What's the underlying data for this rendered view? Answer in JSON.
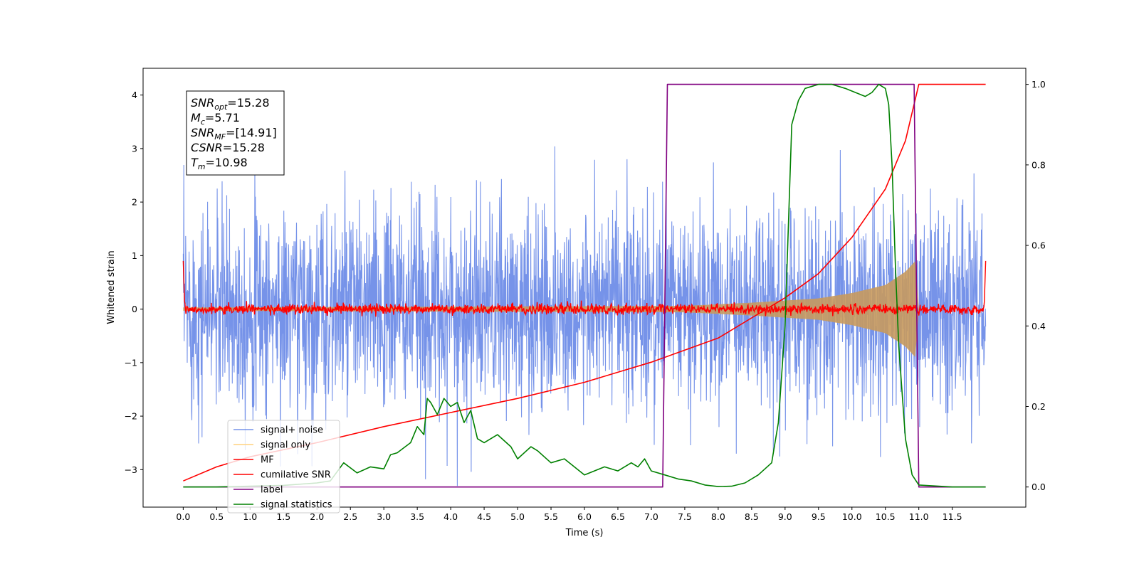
{
  "chart_data": {
    "type": "line",
    "xlabel": "Time (s)",
    "ylabel_left": "Whitened strain",
    "ylabel_right": "",
    "xlim": [
      -0.6,
      12.6
    ],
    "ylim_left": [
      -3.7,
      4.5
    ],
    "ylim_right": [
      -0.05,
      1.04
    ],
    "x_ticks": [
      "0.0",
      "0.5",
      "1.0",
      "1.5",
      "2.0",
      "2.5",
      "3.0",
      "3.5",
      "4.0",
      "4.5",
      "5.0",
      "5.5",
      "6.0",
      "6.5",
      "7.0",
      "7.5",
      "8.0",
      "8.5",
      "9.0",
      "9.5",
      "10.0",
      "10.5",
      "11.0",
      "11.5"
    ],
    "y_ticks_left": [
      "−3",
      "−2",
      "−1",
      "0",
      "1",
      "2",
      "3",
      "4"
    ],
    "y_ticks_right": [
      "0.0",
      "0.2",
      "0.4",
      "0.6",
      "0.8",
      "1.0"
    ],
    "grid": false,
    "legend_position": "lower-left",
    "annotation": {
      "lines": [
        {
          "main": "SNR",
          "sub": "opt",
          "rest": "=15.28"
        },
        {
          "main": "M",
          "sub": "c",
          "rest": "=5.71"
        },
        {
          "main": "SNR",
          "sub": "MF",
          "rest": "=[14.91]"
        },
        {
          "main": "CSNR",
          "sub": "",
          "rest": "=15.28"
        },
        {
          "main": "T",
          "sub": "m",
          "rest": "=10.98"
        }
      ]
    },
    "series": [
      {
        "name": "signal+ noise",
        "axis": "left",
        "color": "#4169e1",
        "style": "noise band approx. ±2.4 whitened strain, spikes to ±3.4, over t=0–12",
        "envelope_x": [
          0,
          12
        ],
        "envelope": [
          -2.4,
          2.4
        ]
      },
      {
        "name": "signal only",
        "axis": "left",
        "color": "#ffa500",
        "style": "chirp envelope growing toward merger",
        "x": [
          0,
          7.5,
          8.5,
          9.5,
          10.0,
          10.5,
          10.8,
          10.95,
          11.0
        ],
        "amplitude": [
          0.03,
          0.06,
          0.12,
          0.2,
          0.3,
          0.45,
          0.7,
          0.9,
          0
        ]
      },
      {
        "name": "MF",
        "axis": "left",
        "color": "#ff0000",
        "style": "matched-filter output noise around 0, amplitude ~0.08",
        "envelope_x": [
          0,
          12
        ],
        "envelope": [
          -0.1,
          0.1
        ]
      },
      {
        "name": "cumilative SNR",
        "axis": "right",
        "color": "#ff0000",
        "x": [
          0,
          0.5,
          1,
          2,
          3,
          4,
          5,
          6,
          7,
          7.5,
          8,
          8.5,
          9,
          9.5,
          10,
          10.5,
          10.8,
          11.0,
          11.5,
          12.0
        ],
        "y": [
          0.015,
          0.05,
          0.075,
          0.11,
          0.15,
          0.185,
          0.22,
          0.26,
          0.31,
          0.34,
          0.37,
          0.42,
          0.47,
          0.53,
          0.62,
          0.74,
          0.86,
          1.0,
          1.0,
          1.0
        ]
      },
      {
        "name": "label",
        "axis": "right",
        "color": "#800080",
        "x": [
          0,
          7.17,
          7.24,
          10.93,
          11.0,
          12.0
        ],
        "y": [
          0,
          0,
          1.0,
          1.0,
          0,
          0
        ]
      },
      {
        "name": "signal statistics",
        "axis": "right",
        "color": "#008000",
        "x": [
          0,
          0.5,
          1,
          1.5,
          2,
          2.2,
          2.4,
          2.6,
          2.8,
          3.0,
          3.1,
          3.2,
          3.4,
          3.5,
          3.6,
          3.65,
          3.7,
          3.8,
          3.9,
          4.0,
          4.1,
          4.2,
          4.3,
          4.4,
          4.5,
          4.7,
          4.9,
          5.0,
          5.2,
          5.3,
          5.5,
          5.7,
          6.0,
          6.3,
          6.5,
          6.7,
          6.8,
          6.9,
          7.0,
          7.2,
          7.4,
          7.6,
          7.8,
          8.0,
          8.2,
          8.4,
          8.6,
          8.8,
          8.9,
          9.0,
          9.05,
          9.1,
          9.2,
          9.3,
          9.5,
          9.7,
          9.9,
          10.2,
          10.3,
          10.4,
          10.5,
          10.55,
          10.6,
          10.65,
          10.7,
          10.8,
          10.9,
          11.0,
          11.5,
          12.0
        ],
        "y": [
          0,
          0,
          0.002,
          0.004,
          0.01,
          0.015,
          0.06,
          0.035,
          0.05,
          0.045,
          0.08,
          0.085,
          0.11,
          0.15,
          0.13,
          0.22,
          0.21,
          0.18,
          0.22,
          0.2,
          0.21,
          0.16,
          0.19,
          0.12,
          0.11,
          0.13,
          0.1,
          0.07,
          0.1,
          0.09,
          0.06,
          0.07,
          0.03,
          0.05,
          0.04,
          0.06,
          0.05,
          0.07,
          0.04,
          0.03,
          0.02,
          0.015,
          0.005,
          0.001,
          0.002,
          0.01,
          0.03,
          0.06,
          0.16,
          0.4,
          0.65,
          0.9,
          0.96,
          0.99,
          1.0,
          1.0,
          0.99,
          0.97,
          0.98,
          1.0,
          0.99,
          0.95,
          0.8,
          0.55,
          0.35,
          0.12,
          0.03,
          0.005,
          0,
          0
        ]
      }
    ]
  }
}
